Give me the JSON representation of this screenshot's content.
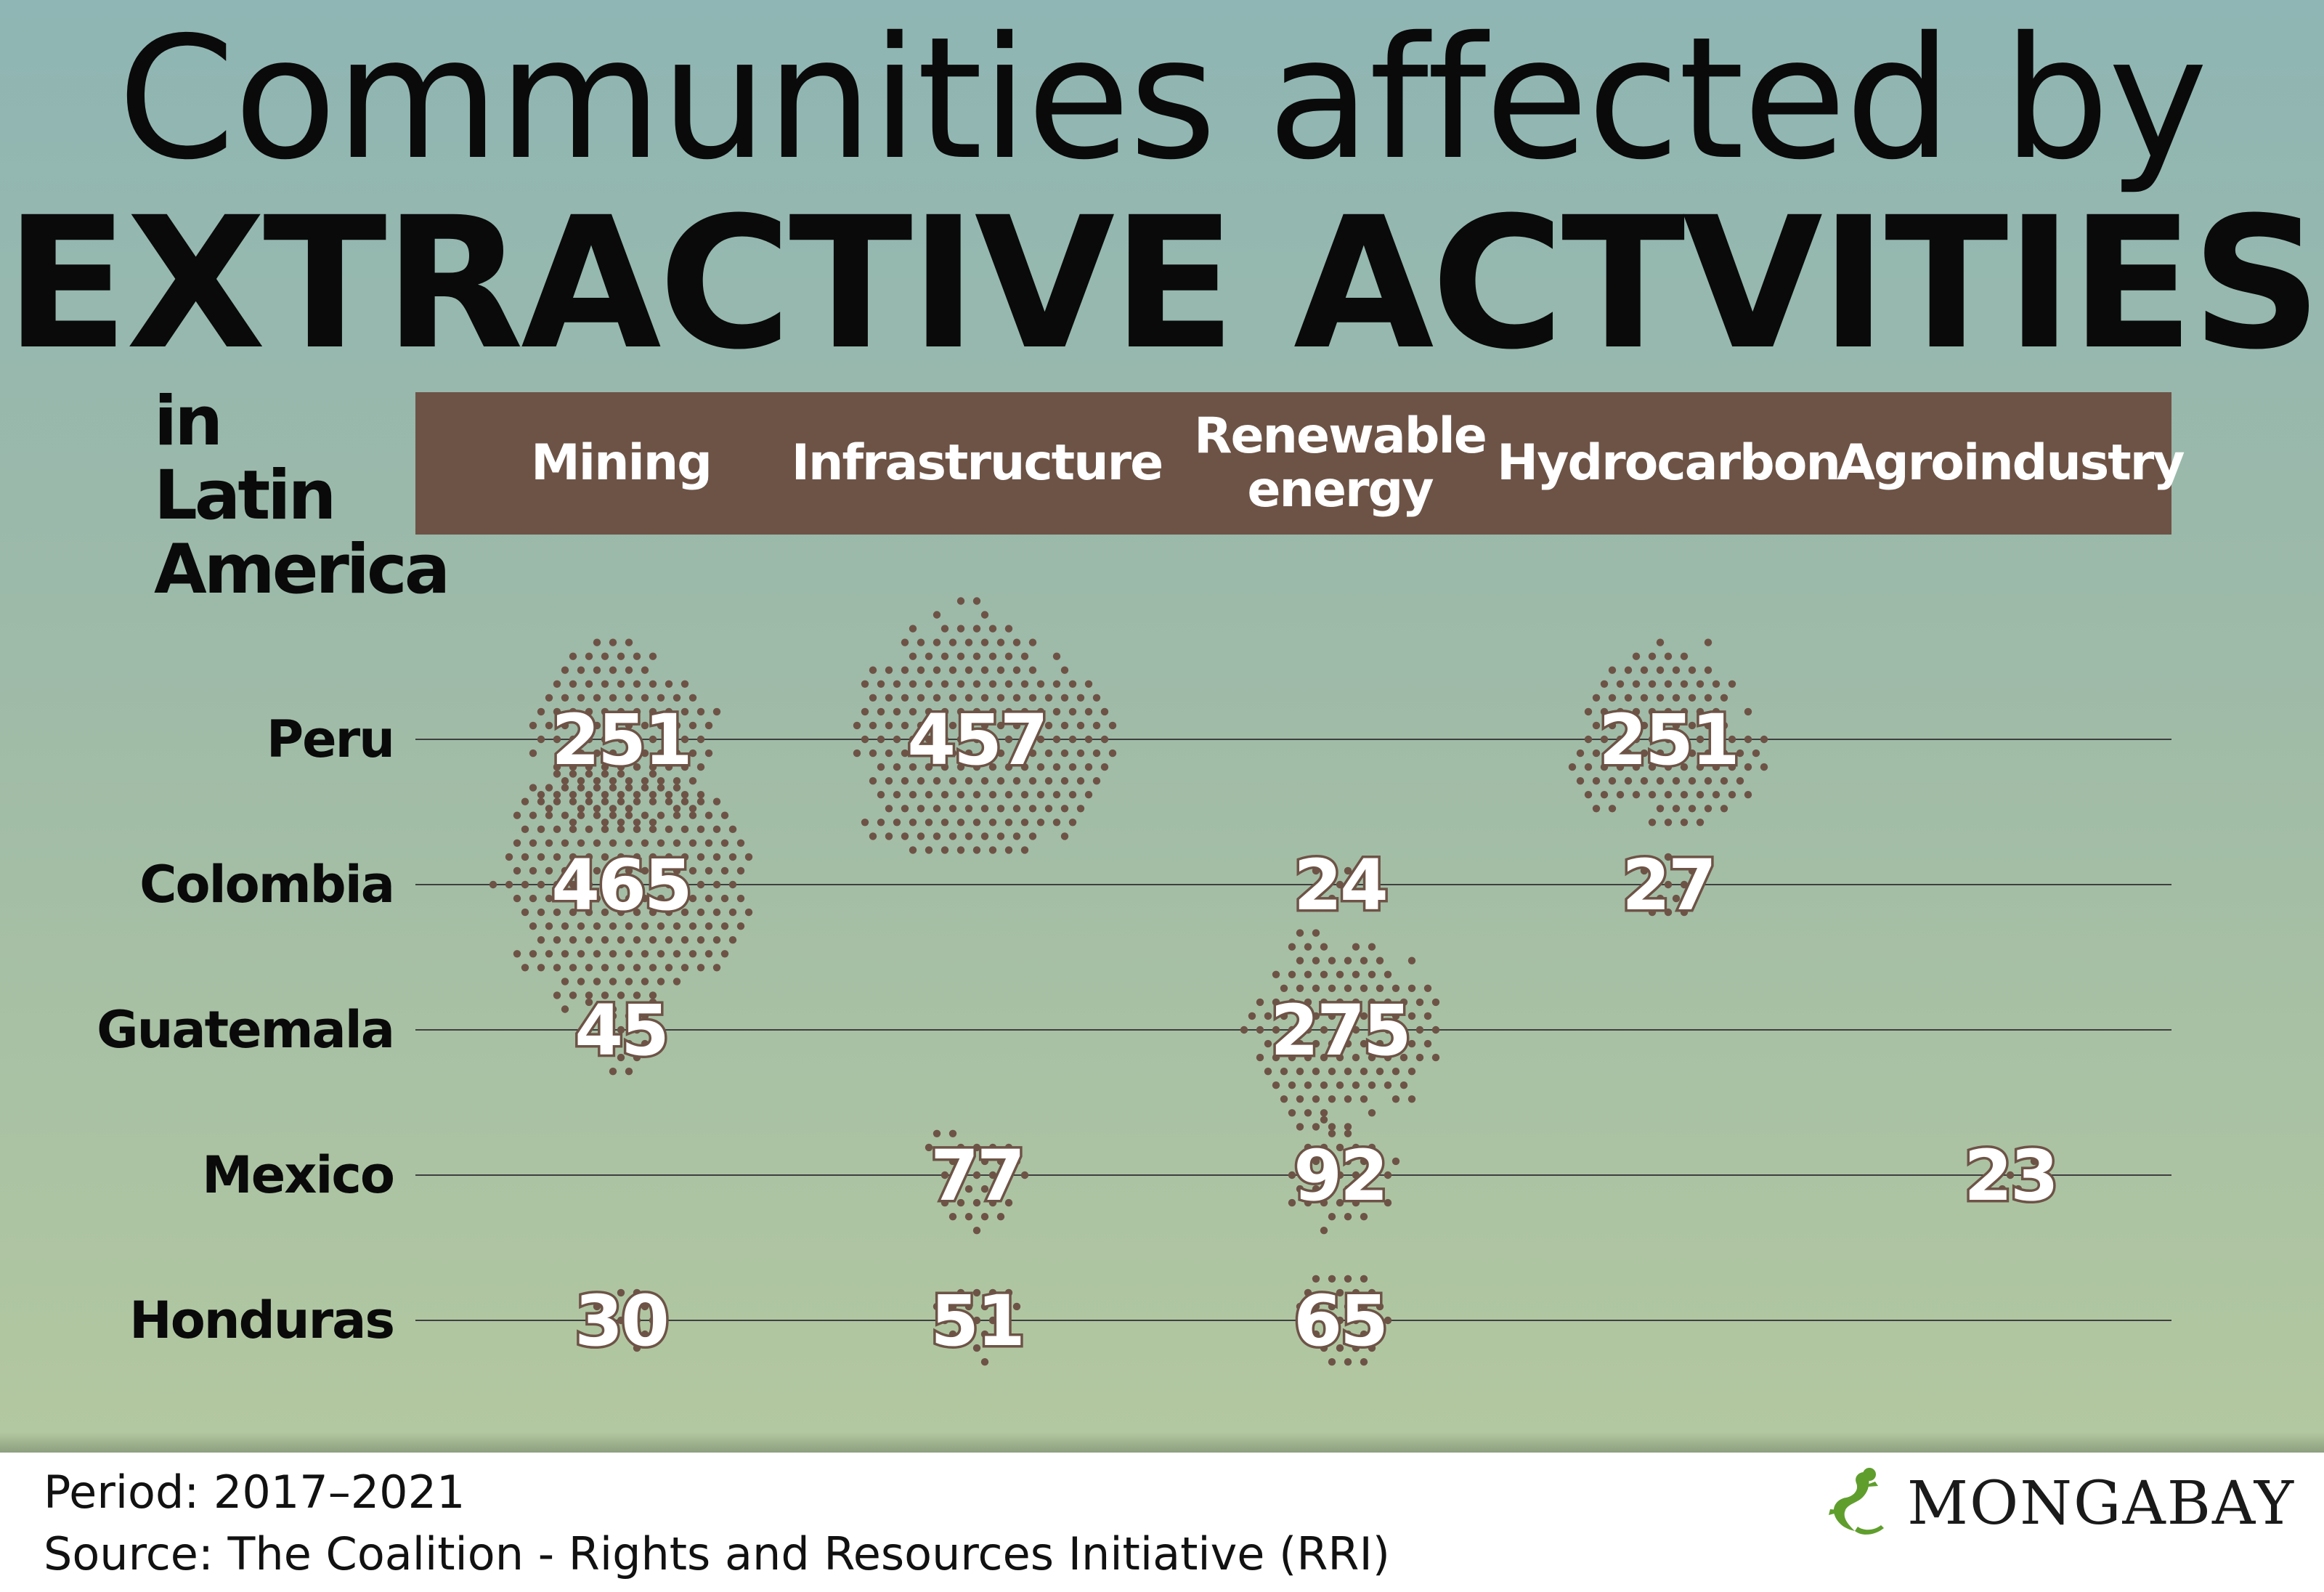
{
  "title_line1": "Communities affected by",
  "title_line2": "EXTRACTIVE ACTVITIES",
  "subtitle_line1": "in Latin",
  "subtitle_line2": "America",
  "footer": {
    "period": "Period: 2017–2021",
    "source": "Source: The Coalition - Rights and Resources Initiative (RRI)"
  },
  "logo": {
    "text": "MONGABAY",
    "icon": "gecko-icon",
    "color": "#5f9e2d"
  },
  "colors": {
    "header_bar": "#6d5346",
    "dots": "#6d5346",
    "row_line": "#3f3f3f",
    "label_fill": "#ffffff"
  },
  "chart_data": {
    "type": "bubble",
    "title": "Communities affected by EXTRACTIVE ACTVITIES",
    "subtitle": "in Latin America",
    "columns": [
      "Mining",
      "Infrastructure",
      "Renewable\nenergy",
      "Hydrocarbon",
      "Agroindustry"
    ],
    "rows": [
      "Peru",
      "Colombia",
      "Guatemala",
      "Mexico",
      "Honduras"
    ],
    "series": [
      {
        "name": "Mining",
        "values": [
          251,
          465,
          45,
          null,
          30
        ]
      },
      {
        "name": "Infrastructure",
        "values": [
          457,
          null,
          null,
          77,
          51
        ]
      },
      {
        "name": "Renewable energy",
        "values": [
          null,
          24,
          275,
          92,
          65
        ]
      },
      {
        "name": "Hydrocarbon",
        "values": [
          251,
          27,
          null,
          null,
          null
        ]
      },
      {
        "name": "Agroindustry",
        "values": [
          null,
          null,
          null,
          23,
          null
        ]
      }
    ]
  }
}
